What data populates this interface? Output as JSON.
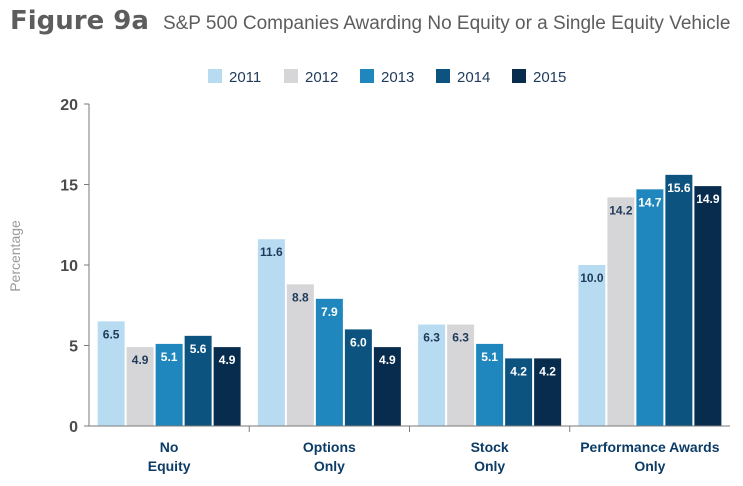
{
  "figure_label": "Figure 9a",
  "chart_data": {
    "type": "bar",
    "title": "S&P 500 Companies Awarding No Equity or a Single Equity Vehicle",
    "xlabel": "",
    "ylabel": "Percentage",
    "ylim": [
      0,
      20
    ],
    "yticks": [
      0,
      5,
      10,
      15,
      20
    ],
    "grid": false,
    "legend_position": "top",
    "categories": [
      [
        "No",
        "Equity"
      ],
      [
        "Options",
        "Only"
      ],
      [
        "Stock",
        "Only"
      ],
      [
        "Performance Awards",
        "Only"
      ]
    ],
    "series": [
      {
        "name": "2011",
        "color": "#b7dcf1",
        "label_color": "#1f3a5a",
        "values": [
          6.5,
          11.6,
          6.3,
          10.0
        ]
      },
      {
        "name": "2012",
        "color": "#d6d6d8",
        "label_color": "#1f3a5a",
        "values": [
          4.9,
          8.8,
          6.3,
          14.2
        ]
      },
      {
        "name": "2013",
        "color": "#1f87bd",
        "label_color": "#ffffff",
        "values": [
          5.1,
          7.9,
          5.1,
          14.7
        ]
      },
      {
        "name": "2014",
        "color": "#0c5380",
        "label_color": "#ffffff",
        "values": [
          5.6,
          6.0,
          4.2,
          15.6
        ]
      },
      {
        "name": "2015",
        "color": "#072c4d",
        "label_color": "#ffffff",
        "values": [
          4.9,
          4.9,
          4.2,
          14.9
        ]
      }
    ]
  }
}
